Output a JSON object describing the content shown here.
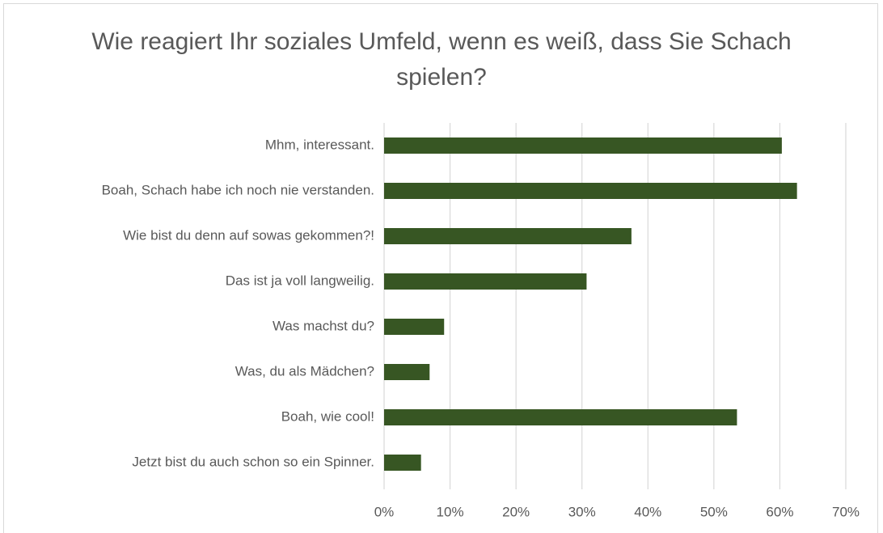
{
  "chart_data": {
    "type": "bar",
    "orientation": "horizontal",
    "title": "Wie reagiert Ihr soziales Umfeld, wenn es weiß, dass Sie Schach spielen?",
    "categories": [
      "Mhm, interessant.",
      "Boah, Schach habe ich noch nie verstanden.",
      "Wie bist du denn auf sowas gekommen?!",
      "Das ist ja voll langweilig.",
      "Was machst du?",
      "Was, du als Mädchen?",
      "Boah, wie cool!",
      "Jetzt bist du auch schon so ein Spinner."
    ],
    "values": [
      60.3,
      62.6,
      37.5,
      30.7,
      9.1,
      6.9,
      53.5,
      5.6
    ],
    "color": "#375623",
    "xlim": [
      0,
      70
    ],
    "xticks": [
      {
        "value": 0,
        "label": "0%"
      },
      {
        "value": 10,
        "label": "10%"
      },
      {
        "value": 20,
        "label": "20%"
      },
      {
        "value": 30,
        "label": "30%"
      },
      {
        "value": 40,
        "label": "40%"
      },
      {
        "value": 50,
        "label": "50%"
      },
      {
        "value": 60,
        "label": "60%"
      },
      {
        "value": 70,
        "label": "70%"
      }
    ],
    "grid": true
  }
}
